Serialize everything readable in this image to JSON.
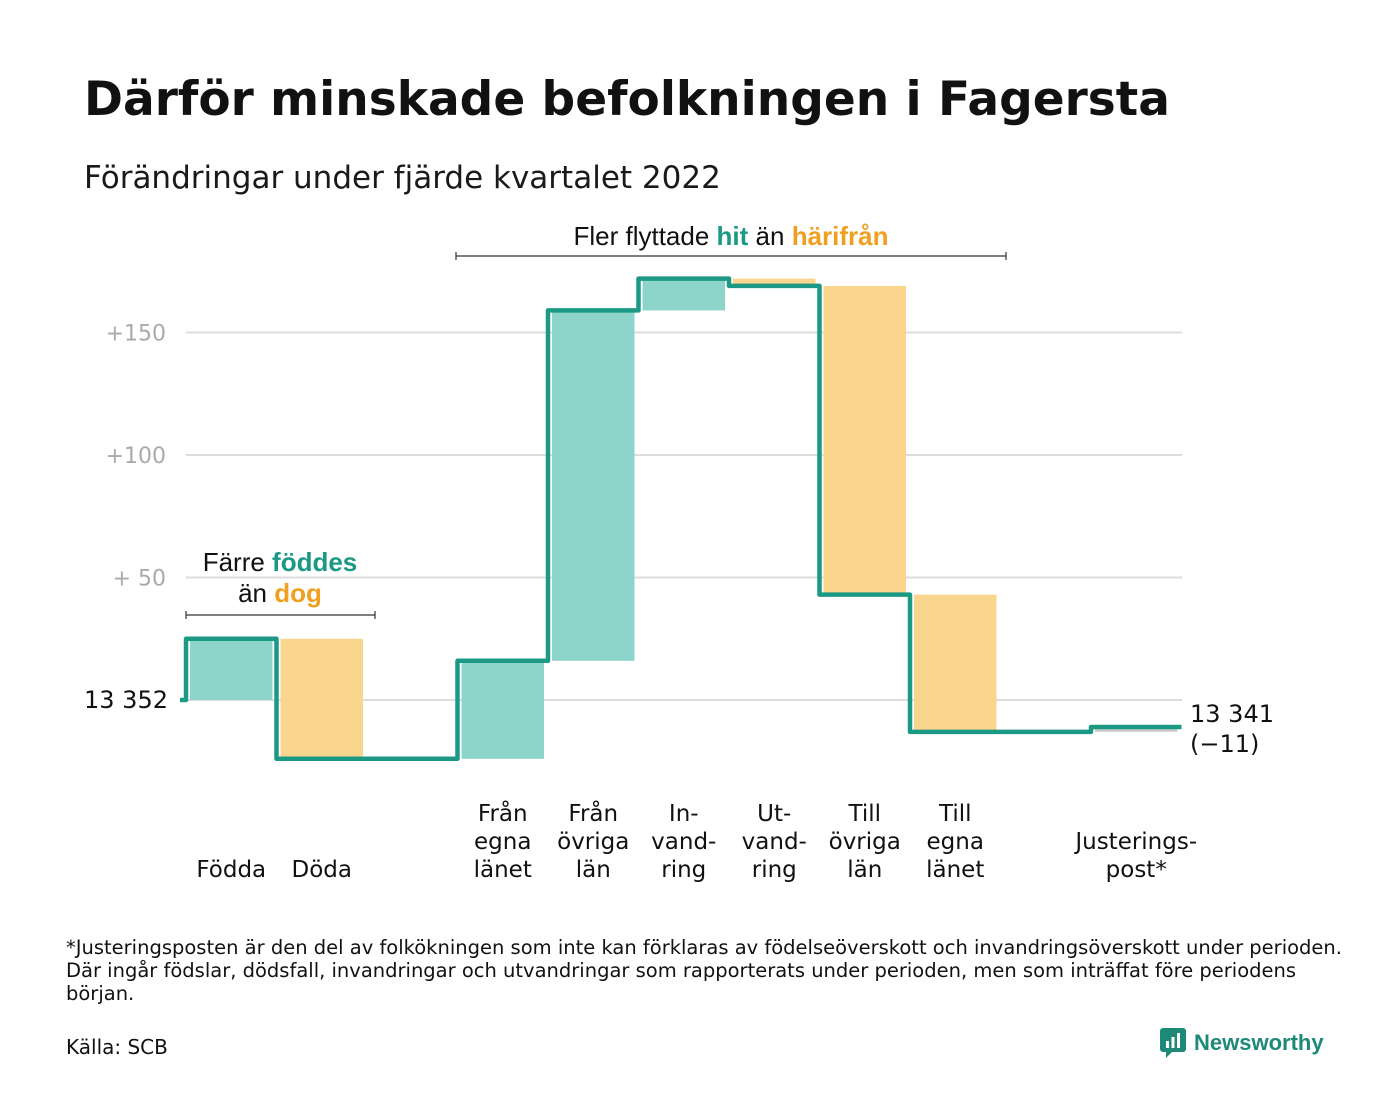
{
  "title": "Därför minskade befolkningen i Fagersta",
  "subtitle": "Förändringar under fjärde kvartalet 2022",
  "annotations": {
    "births_deaths": {
      "line1": "Färre ",
      "line1_hl": "föddes",
      "line2": "än ",
      "line2_hl": "dog"
    },
    "migration": {
      "pre": "Fler flyttade ",
      "hl1": "hit",
      "mid": " än ",
      "hl2": "härifrån"
    }
  },
  "chart_data": {
    "type": "waterfall",
    "title": "Därför minskade befolkningen i Fagersta",
    "subtitle": "Förändringar under fjärde kvartalet 2022",
    "start_label": "13 352",
    "end_label": "13 341",
    "end_change_label": "(−11)",
    "start_value": 0,
    "ylim": [
      -30,
      175
    ],
    "y_ticks": [
      {
        "value": 50,
        "label": "+ 50"
      },
      {
        "value": 100,
        "label": "+100"
      },
      {
        "value": 150,
        "label": "+150"
      }
    ],
    "grid": true,
    "steps": [
      {
        "label": [
          "Födda"
        ],
        "change": 25,
        "kind": "in"
      },
      {
        "label": [
          "Döda"
        ],
        "change": -49,
        "kind": "out"
      },
      {
        "label": [],
        "change": 0,
        "kind": "gap"
      },
      {
        "label": [
          "Från",
          "egna",
          "länet"
        ],
        "change": 40,
        "kind": "in"
      },
      {
        "label": [
          "Från",
          "övriga",
          "län"
        ],
        "change": 143,
        "kind": "in"
      },
      {
        "label": [
          "In-",
          "vand-",
          "ring"
        ],
        "change": 13,
        "kind": "in"
      },
      {
        "label": [
          "Ut-",
          "vand-",
          "ring"
        ],
        "change": -3,
        "kind": "out"
      },
      {
        "label": [
          "Till",
          "övriga",
          "län"
        ],
        "change": -126,
        "kind": "out"
      },
      {
        "label": [
          "Till",
          "egna",
          "länet"
        ],
        "change": -56,
        "kind": "out"
      },
      {
        "label": [],
        "change": 0,
        "kind": "gap"
      },
      {
        "label": [
          "Justerings-",
          "post*"
        ],
        "change": 2,
        "kind": "adjust"
      }
    ]
  },
  "colors": {
    "in": "#8dd5cb",
    "out": "#f9d58e",
    "line": "#1b9985",
    "adjust": "#cccccc",
    "grid": "#dddddd",
    "tick": "#aaaaaa",
    "hl_teal": "#1b9985",
    "hl_orange": "#f0a020"
  },
  "footnote": "*Justeringsposten är den del av folkökningen som inte kan förklaras av födelseöverskott och invandringsöverskott under perioden. Där ingår födslar, dödsfall, invandringar och utvandringar som rapporterats under perioden, men som inträffat före periodens början.",
  "source": "Källa: SCB",
  "brand": "Newsworthy"
}
